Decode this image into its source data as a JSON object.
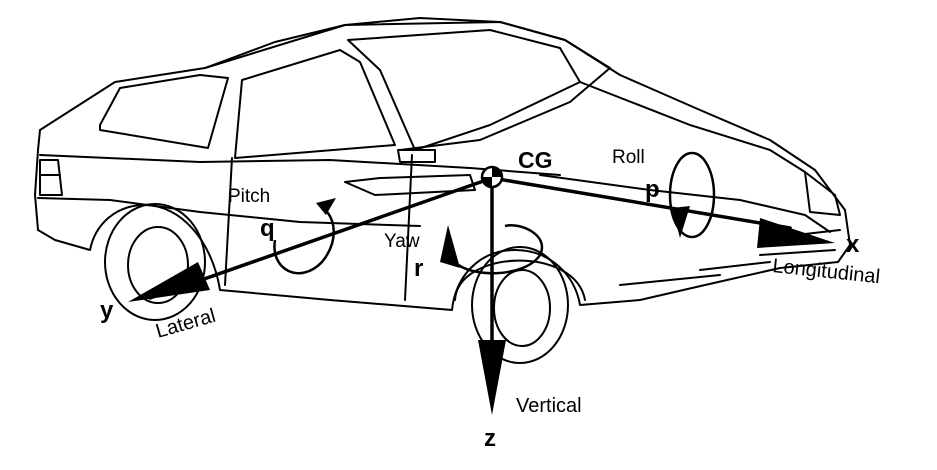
{
  "diagram": {
    "cg_label": "CG",
    "axes": {
      "x": {
        "symbol": "x",
        "name": "Longitudinal"
      },
      "y": {
        "symbol": "y",
        "name": "Lateral"
      },
      "z": {
        "symbol": "z",
        "name": "Vertical"
      }
    },
    "rotations": {
      "roll": {
        "name": "Roll",
        "symbol": "p"
      },
      "pitch": {
        "name": "Pitch",
        "symbol": "q"
      },
      "yaw": {
        "name": "Yaw",
        "symbol": "r"
      }
    },
    "colors": {
      "line": "#000000",
      "background": "#ffffff"
    }
  }
}
